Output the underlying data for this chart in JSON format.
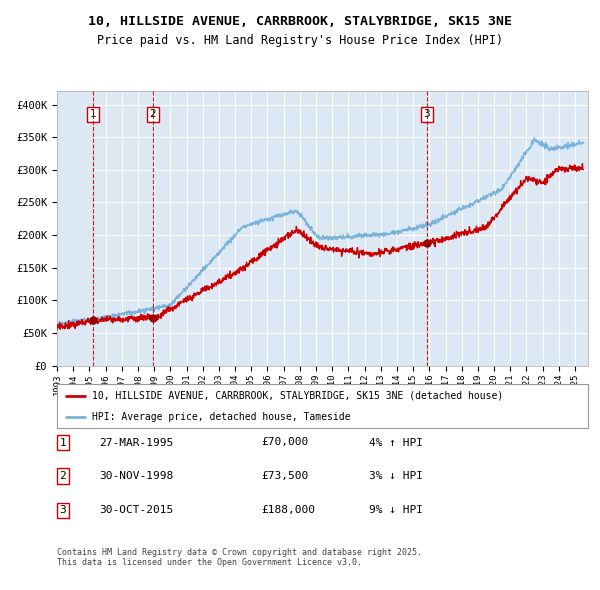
{
  "title_line1": "10, HILLSIDE AVENUE, CARRBROOK, STALYBRIDGE, SK15 3NE",
  "title_line2": "Price paid vs. HM Land Registry's House Price Index (HPI)",
  "ylim": [
    0,
    420000
  ],
  "yticks": [
    0,
    50000,
    100000,
    150000,
    200000,
    250000,
    300000,
    350000,
    400000
  ],
  "ytick_labels": [
    "£0",
    "£50K",
    "£100K",
    "£150K",
    "£200K",
    "£250K",
    "£300K",
    "£350K",
    "£400K"
  ],
  "bg_color": "#dce9f5",
  "hatch_region_end_year": 1995.25,
  "sale_dates": [
    1995.24,
    1998.92,
    2015.83
  ],
  "sale_prices": [
    70000,
    73500,
    188000
  ],
  "sale_labels": [
    "1",
    "2",
    "3"
  ],
  "sale_info": [
    {
      "label": "1",
      "date": "27-MAR-1995",
      "price": "£70,000",
      "hpi_diff": "4% ↑ HPI"
    },
    {
      "label": "2",
      "date": "30-NOV-1998",
      "price": "£73,500",
      "hpi_diff": "3% ↓ HPI"
    },
    {
      "label": "3",
      "date": "30-OCT-2015",
      "price": "£188,000",
      "hpi_diff": "9% ↓ HPI"
    }
  ],
  "legend_line1": "10, HILLSIDE AVENUE, CARRBROOK, STALYBRIDGE, SK15 3NE (detached house)",
  "legend_line2": "HPI: Average price, detached house, Tameside",
  "footer": "Contains HM Land Registry data © Crown copyright and database right 2025.\nThis data is licensed under the Open Government Licence v3.0.",
  "line_color_red": "#cc0000",
  "line_color_blue": "#7ab3d9",
  "grid_color": "#ffffff",
  "dashed_line_color": "#cc0000",
  "xlim_left": 1993.0,
  "xlim_right": 2025.8,
  "xtick_years": [
    1993,
    1994,
    1995,
    1996,
    1997,
    1998,
    1999,
    2000,
    2001,
    2002,
    2003,
    2004,
    2005,
    2006,
    2007,
    2008,
    2009,
    2010,
    2011,
    2012,
    2013,
    2014,
    2015,
    2016,
    2017,
    2018,
    2019,
    2020,
    2021,
    2022,
    2023,
    2024,
    2025
  ]
}
